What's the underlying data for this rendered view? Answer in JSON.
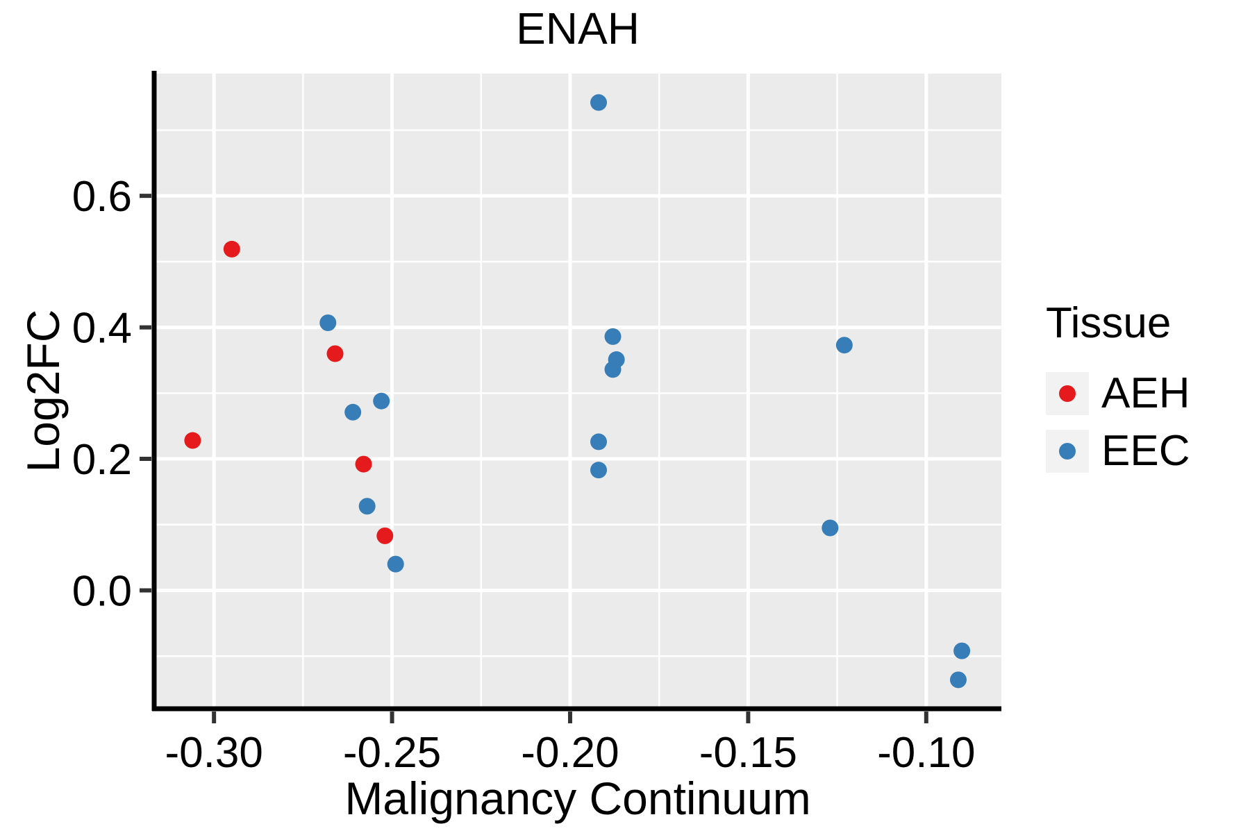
{
  "chart_data": {
    "type": "scatter",
    "title": "ENAH",
    "xlabel": "Malignancy Continuum",
    "ylabel": "Log2FC",
    "legend": {
      "title": "Tissue",
      "position": "right"
    },
    "grid": true,
    "xlim": [
      -0.3168,
      -0.0789
    ],
    "ylim": [
      -0.18,
      0.786
    ],
    "x_ticks": {
      "values": [
        -0.3,
        -0.25,
        -0.2,
        -0.15,
        -0.1
      ],
      "labels": [
        "-0.30",
        "-0.25",
        "-0.20",
        "-0.15",
        "-0.10"
      ]
    },
    "y_ticks": {
      "values": [
        0.0,
        0.2,
        0.4,
        0.6
      ],
      "labels": [
        "0.0",
        "0.2",
        "0.4",
        "0.6"
      ]
    },
    "x_minor": [
      -0.275,
      -0.225,
      -0.175,
      -0.125
    ],
    "y_minor": [
      -0.1,
      0.1,
      0.3,
      0.5,
      0.7
    ],
    "series": [
      {
        "name": "AEH",
        "color": "#E41A1C",
        "points": [
          [
            -0.306,
            0.228
          ],
          [
            -0.295,
            0.519
          ],
          [
            -0.266,
            0.36
          ],
          [
            -0.258,
            0.192
          ],
          [
            -0.252,
            0.083
          ]
        ]
      },
      {
        "name": "EEC",
        "color": "#377EB8",
        "points": [
          [
            -0.268,
            0.407
          ],
          [
            -0.261,
            0.271
          ],
          [
            -0.253,
            0.288
          ],
          [
            -0.257,
            0.128
          ],
          [
            -0.249,
            0.04
          ],
          [
            -0.192,
            0.742
          ],
          [
            -0.188,
            0.386
          ],
          [
            -0.188,
            0.336
          ],
          [
            -0.187,
            0.351
          ],
          [
            -0.192,
            0.226
          ],
          [
            -0.192,
            0.183
          ],
          [
            -0.123,
            0.373
          ],
          [
            -0.127,
            0.095
          ],
          [
            -0.09,
            -0.092
          ],
          [
            -0.091,
            -0.136
          ]
        ]
      }
    ]
  },
  "colors": {
    "panel_bg": "#EBEBEB",
    "grid": "#FFFFFF",
    "axis_line": "#000000",
    "tick_mark": "#333333",
    "legend_key_bg": "#F2F2F2",
    "aeh": "#E41A1C",
    "eec": "#377EB8"
  }
}
